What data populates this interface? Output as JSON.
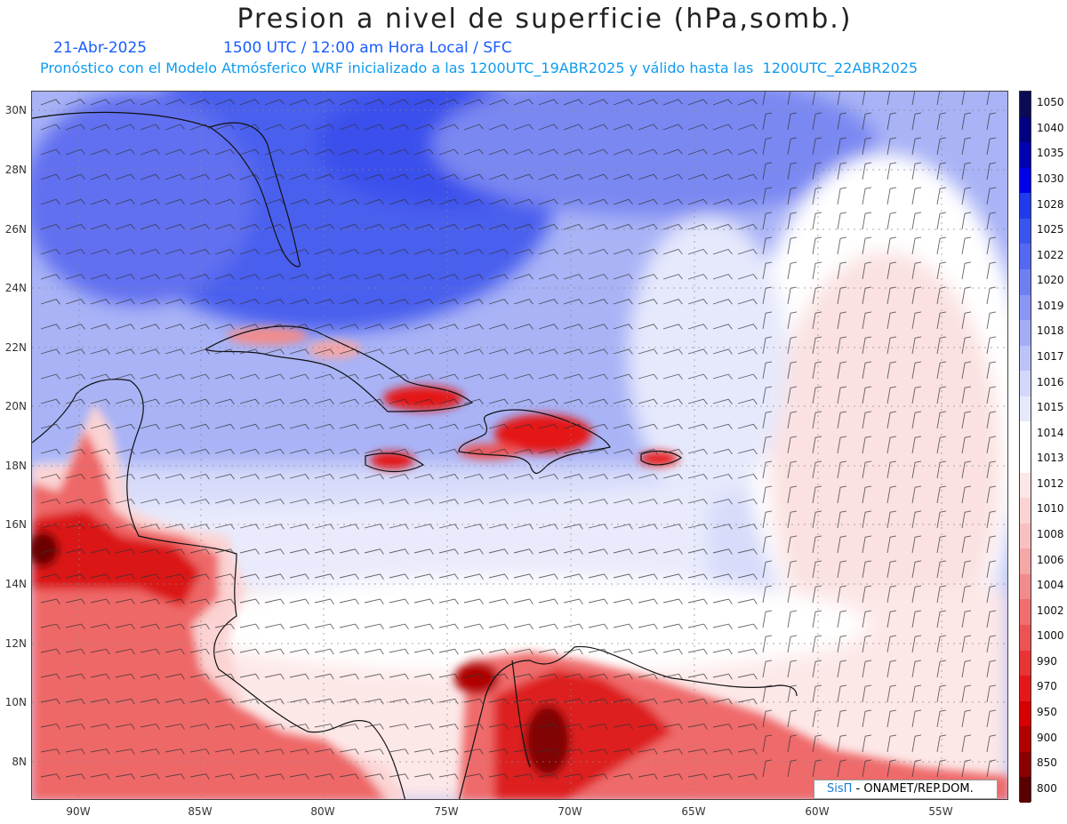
{
  "title": "Presion a nivel de superficie (hPa,somb.)",
  "subtitle_date": "21-Abr-2025",
  "subtitle_time": "1500 UTC / 12:00 am Hora Local / SFC",
  "subtitle_model": "Pronóstico con el Modelo Atmósferico WRF inicializado a las 1200UTC_19ABR2025 y válido hasta las  1200UTC_22ABR2025",
  "lat_labels": [
    "30N",
    "28N",
    "26N",
    "24N",
    "22N",
    "20N",
    "18N",
    "16N",
    "14N",
    "12N",
    "10N",
    "8N"
  ],
  "lon_labels": [
    "90W",
    "85W",
    "80W",
    "75W",
    "70W",
    "65W",
    "60W",
    "55W"
  ],
  "colorbar": {
    "labels": [
      "1050",
      "1040",
      "1035",
      "1030",
      "1028",
      "1025",
      "1022",
      "1020",
      "1019",
      "1018",
      "1017",
      "1016",
      "1015",
      "1014",
      "1013",
      "1012",
      "1010",
      "1008",
      "1006",
      "1004",
      "1002",
      "1000",
      "990",
      "970",
      "950",
      "900",
      "850",
      "800"
    ],
    "colors": [
      "#0a0a55",
      "#000080",
      "#0000b0",
      "#0000e6",
      "#1f3bea",
      "#3a55ee",
      "#5568f0",
      "#6e7ff2",
      "#8a96f4",
      "#a3adf6",
      "#bcc3f8",
      "#d3d8fa",
      "#e6e9fc",
      "#ffffff",
      "#ffffff",
      "#fde6e6",
      "#fbd3d3",
      "#f8c0c0",
      "#f5a6a6",
      "#f28c8c",
      "#ef6f6f",
      "#ec5454",
      "#e83434",
      "#e41818",
      "#d60000",
      "#b00000",
      "#8a0000",
      "#5a0000"
    ]
  },
  "credits": {
    "logo": "SisΠ",
    "text": " - ONAMET/REP.DOM."
  }
}
